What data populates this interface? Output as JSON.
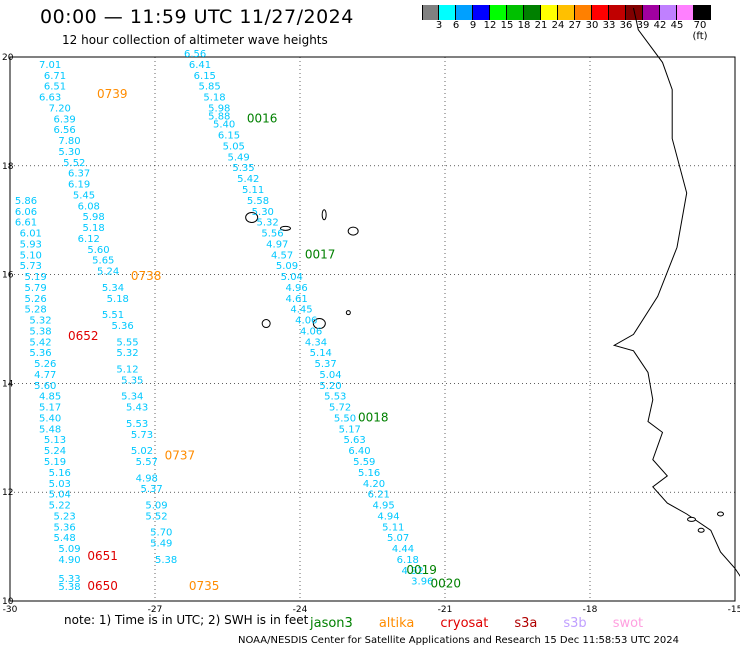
{
  "title": "00:00 — 11:59 UTC 11/27/2024",
  "subtitle": "12 hour collection of altimeter wave heights",
  "scale": {
    "colors": [
      "#808080",
      "#00ffff",
      "#00a0ff",
      "#0000ff",
      "#00ff00",
      "#00c000",
      "#008000",
      "#ffff00",
      "#ffc000",
      "#ff8000",
      "#ff0000",
      "#c00000",
      "#800000",
      "#a000a0",
      "#c080ff",
      "#ff80ff",
      "#000000"
    ],
    "values": [
      "3",
      "6",
      "9",
      "12",
      "15",
      "18",
      "21",
      "24",
      "27",
      "30",
      "33",
      "36",
      "39",
      "42",
      "45",
      "70 (ft)"
    ]
  },
  "axes": {
    "x_ticks": [
      "-30",
      "-27",
      "-24",
      "-21",
      "-18",
      "-15"
    ],
    "y_ticks": [
      "20",
      "18",
      "16",
      "14",
      "12",
      "10"
    ]
  },
  "tracks": [
    {
      "color": "#00c8ff",
      "points": [
        [
          "7.01",
          -29.4,
          19.8
        ],
        [
          "6.71",
          -29.3,
          19.6
        ],
        [
          "6.51",
          -29.3,
          19.4
        ],
        [
          "6.63",
          -29.4,
          19.2
        ],
        [
          "7.20",
          -29.2,
          19.0
        ],
        [
          "6.39",
          -29.1,
          18.8
        ],
        [
          "6.56",
          -29.1,
          18.6
        ],
        [
          "7.80",
          -29.0,
          18.4
        ],
        [
          "5.30",
          -29.0,
          18.2
        ],
        [
          "5.52",
          -28.9,
          18.0
        ],
        [
          "6.37",
          -28.8,
          17.8
        ],
        [
          "6.19",
          -28.8,
          17.6
        ],
        [
          "5.45",
          -28.7,
          17.4
        ],
        [
          "6.08",
          -28.6,
          17.2
        ],
        [
          "5.98",
          -28.5,
          17.0
        ],
        [
          "5.18",
          -28.5,
          16.8
        ],
        [
          "6.12",
          -28.6,
          16.6
        ],
        [
          "5.60",
          -28.4,
          16.4
        ],
        [
          "5.65",
          -28.3,
          16.2
        ],
        [
          "5.24",
          -28.2,
          16.0
        ],
        [
          "5.34",
          -28.1,
          15.7
        ],
        [
          "5.18",
          -28.0,
          15.5
        ],
        [
          "5.51",
          -28.1,
          15.2
        ],
        [
          "5.36",
          -27.9,
          15.0
        ],
        [
          "5.55",
          -27.8,
          14.7
        ],
        [
          "5.32",
          -27.8,
          14.5
        ],
        [
          "5.12",
          -27.8,
          14.2
        ],
        [
          "5.35",
          -27.7,
          14.0
        ],
        [
          "5.34",
          -27.7,
          13.7
        ],
        [
          "5.43",
          -27.6,
          13.5
        ],
        [
          "5.53",
          -27.6,
          13.2
        ],
        [
          "5.73",
          -27.5,
          13.0
        ],
        [
          "5.02",
          -27.5,
          12.7
        ],
        [
          "5.57",
          -27.4,
          12.5
        ],
        [
          "4.98",
          -27.4,
          12.2
        ],
        [
          "5.37",
          -27.3,
          12.0
        ],
        [
          "5.09",
          -27.2,
          11.7
        ],
        [
          "5.52",
          -27.2,
          11.5
        ],
        [
          "5.70",
          -27.1,
          11.2
        ],
        [
          "5.49",
          -27.1,
          11.0
        ],
        [
          "5.38",
          -27.0,
          10.7
        ]
      ]
    },
    {
      "color": "#00c8ff",
      "points": [
        [
          "6.56",
          -26.4,
          20.0
        ],
        [
          "6.41",
          -26.3,
          19.8
        ],
        [
          "6.15",
          -26.2,
          19.6
        ],
        [
          "5.85",
          -26.1,
          19.4
        ],
        [
          "5.18",
          -26.0,
          19.2
        ],
        [
          "5.98",
          -25.9,
          19.0
        ],
        [
          "5.88",
          -25.9,
          18.85
        ],
        [
          "5.40",
          -25.8,
          18.7
        ],
        [
          "6.15",
          -25.7,
          18.5
        ],
        [
          "5.05",
          -25.6,
          18.3
        ],
        [
          "5.49",
          -25.5,
          18.1
        ],
        [
          "5.35",
          -25.4,
          17.9
        ],
        [
          "5.42",
          -25.3,
          17.7
        ],
        [
          "5.11",
          -25.2,
          17.5
        ],
        [
          "5.58",
          -25.1,
          17.3
        ],
        [
          "5.30",
          -25.0,
          17.1
        ],
        [
          "5.32",
          -24.9,
          16.9
        ],
        [
          "5.56",
          -24.8,
          16.7
        ],
        [
          "4.97",
          -24.7,
          16.5
        ],
        [
          "4.57",
          -24.6,
          16.3
        ],
        [
          "5.09",
          -24.5,
          16.1
        ],
        [
          "5.04",
          -24.4,
          15.9
        ],
        [
          "4.96",
          -24.3,
          15.7
        ],
        [
          "4.61",
          -24.3,
          15.5
        ],
        [
          "4.45",
          -24.2,
          15.3
        ],
        [
          "4.06",
          -24.1,
          15.1
        ],
        [
          "4.06",
          -24.0,
          14.9
        ],
        [
          "4.34",
          -23.9,
          14.7
        ],
        [
          "5.14",
          -23.8,
          14.5
        ],
        [
          "5.37",
          -23.7,
          14.3
        ],
        [
          "5.04",
          -23.6,
          14.1
        ],
        [
          "5.20",
          -23.6,
          13.9
        ],
        [
          "5.53",
          -23.5,
          13.7
        ],
        [
          "5.72",
          -23.4,
          13.5
        ],
        [
          "5.50",
          -23.3,
          13.3
        ],
        [
          "5.17",
          -23.2,
          13.1
        ],
        [
          "5.63",
          -23.1,
          12.9
        ],
        [
          "6.40",
          -23.0,
          12.7
        ],
        [
          "5.59",
          -22.9,
          12.5
        ],
        [
          "5.16",
          -22.8,
          12.3
        ],
        [
          "4.20",
          -22.7,
          12.1
        ],
        [
          "6.21",
          -22.6,
          11.9
        ],
        [
          "4.95",
          -22.5,
          11.7
        ],
        [
          "4.94",
          -22.4,
          11.5
        ],
        [
          "5.11",
          -22.3,
          11.3
        ],
        [
          "5.07",
          -22.2,
          11.1
        ],
        [
          "4.44",
          -22.1,
          10.9
        ],
        [
          "6.18",
          -22.0,
          10.7
        ],
        [
          "4.92",
          -21.9,
          10.5
        ],
        [
          "3.96",
          -21.7,
          10.3
        ]
      ]
    },
    {
      "color": "#00c8ff",
      "points": [
        [
          "5.86",
          -29.9,
          17.3
        ],
        [
          "6.06",
          -29.9,
          17.1
        ],
        [
          "6.61",
          -29.9,
          16.9
        ],
        [
          "6.01",
          -29.8,
          16.7
        ],
        [
          "5.93",
          -29.8,
          16.5
        ],
        [
          "5.10",
          -29.8,
          16.3
        ],
        [
          "5.73",
          -29.8,
          16.1
        ],
        [
          "5.19",
          -29.7,
          15.9
        ],
        [
          "5.79",
          -29.7,
          15.7
        ],
        [
          "5.26",
          -29.7,
          15.5
        ],
        [
          "5.28",
          -29.7,
          15.3
        ],
        [
          "5.32",
          -29.6,
          15.1
        ],
        [
          "5.38",
          -29.6,
          14.9
        ],
        [
          "5.42",
          -29.6,
          14.7
        ],
        [
          "5.36",
          -29.6,
          14.5
        ],
        [
          "5.26",
          -29.5,
          14.3
        ],
        [
          "4.77",
          -29.5,
          14.1
        ],
        [
          "5.60",
          -29.5,
          13.9
        ],
        [
          "4.85",
          -29.4,
          13.7
        ],
        [
          "5.17",
          -29.4,
          13.5
        ],
        [
          "5.40",
          -29.4,
          13.3
        ],
        [
          "5.48",
          -29.4,
          13.1
        ],
        [
          "5.13",
          -29.3,
          12.9
        ],
        [
          "5.24",
          -29.3,
          12.7
        ],
        [
          "5.19",
          -29.3,
          12.5
        ],
        [
          "5.16",
          -29.2,
          12.3
        ],
        [
          "5.03",
          -29.2,
          12.1
        ],
        [
          "5.04",
          -29.2,
          11.9
        ],
        [
          "5.22",
          -29.2,
          11.7
        ],
        [
          "5.23",
          -29.1,
          11.5
        ],
        [
          "5.36",
          -29.1,
          11.3
        ],
        [
          "5.48",
          -29.1,
          11.1
        ],
        [
          "5.09",
          -29.0,
          10.9
        ],
        [
          "4.90",
          -29.0,
          10.7
        ],
        [
          "5.33",
          -29.0,
          10.35
        ],
        [
          "5.38",
          -29.0,
          10.2
        ]
      ]
    }
  ],
  "track_labels": [
    {
      "text": "0739",
      "color": "#ff8c00",
      "lon": -28.2,
      "lat": 19.25
    },
    {
      "text": "0016",
      "color": "#008000",
      "lon": -25.1,
      "lat": 18.8
    },
    {
      "text": "0017",
      "color": "#008000",
      "lon": -23.9,
      "lat": 16.3
    },
    {
      "text": "0738",
      "color": "#ff8c00",
      "lon": -27.5,
      "lat": 15.9
    },
    {
      "text": "0652",
      "color": "#e00000",
      "lon": -28.8,
      "lat": 14.8
    },
    {
      "text": "0018",
      "color": "#008000",
      "lon": -22.8,
      "lat": 13.3
    },
    {
      "text": "0737",
      "color": "#ff8c00",
      "lon": -26.8,
      "lat": 12.6
    },
    {
      "text": "0651",
      "color": "#e00000",
      "lon": -28.4,
      "lat": 10.75
    },
    {
      "text": "0019",
      "color": "#008000",
      "lon": -21.8,
      "lat": 10.5
    },
    {
      "text": "0650",
      "color": "#e00000",
      "lon": -28.4,
      "lat": 10.2
    },
    {
      "text": "0735",
      "color": "#ff8c00",
      "lon": -26.3,
      "lat": 10.2
    },
    {
      "text": "0020",
      "color": "#008000",
      "lon": -21.3,
      "lat": 10.25
    }
  ],
  "note": {
    "text": "note:  1) Time is in UTC; 2) SWH is in feet",
    "satellites": [
      {
        "name": "jason3",
        "color": "#008000"
      },
      {
        "name": "altika",
        "color": "#ff8c00"
      },
      {
        "name": "cryosat",
        "color": "#e00000"
      },
      {
        "name": "s3a",
        "color": "#b00000"
      },
      {
        "name": "s3b",
        "color": "#c0a0ff"
      },
      {
        "name": "swot",
        "color": "#ffa0e0"
      }
    ]
  },
  "credit": "NOAA/NESDIS Center for Satellite Applications and Research    15 Dec 11:58:53 UTC 2024"
}
